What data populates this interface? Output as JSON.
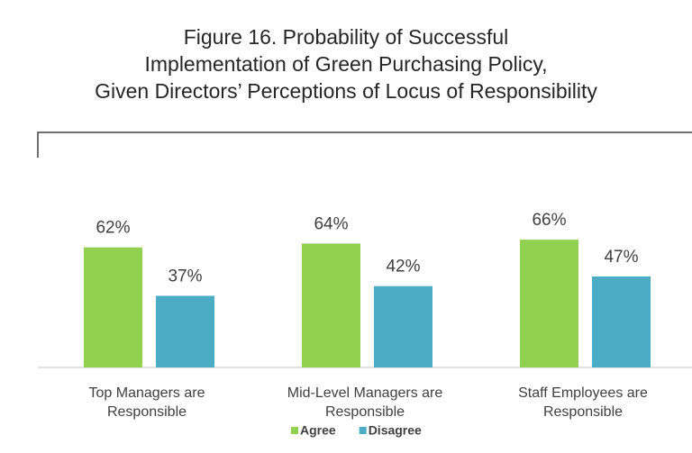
{
  "chart_data": {
    "type": "bar",
    "title": "Figure 16. Probability of Successful\nImplementation of Green Purchasing Policy,\nGiven Directors’ Perceptions of Locus of Responsibility",
    "categories": [
      "Top Managers are\nResponsible",
      "Mid-Level Managers are\nResponsible",
      "Staff Employees are\nResponsible"
    ],
    "series": [
      {
        "name": "Agree",
        "color": "#92d050",
        "values": [
          62,
          64,
          66
        ],
        "value_labels": [
          "62%",
          "64%",
          "66%"
        ]
      },
      {
        "name": "Disagree",
        "color": "#4bacc6",
        "values": [
          37,
          42,
          47
        ],
        "value_labels": [
          "37%",
          "42%",
          "47%"
        ]
      }
    ],
    "legend": "bottom"
  }
}
